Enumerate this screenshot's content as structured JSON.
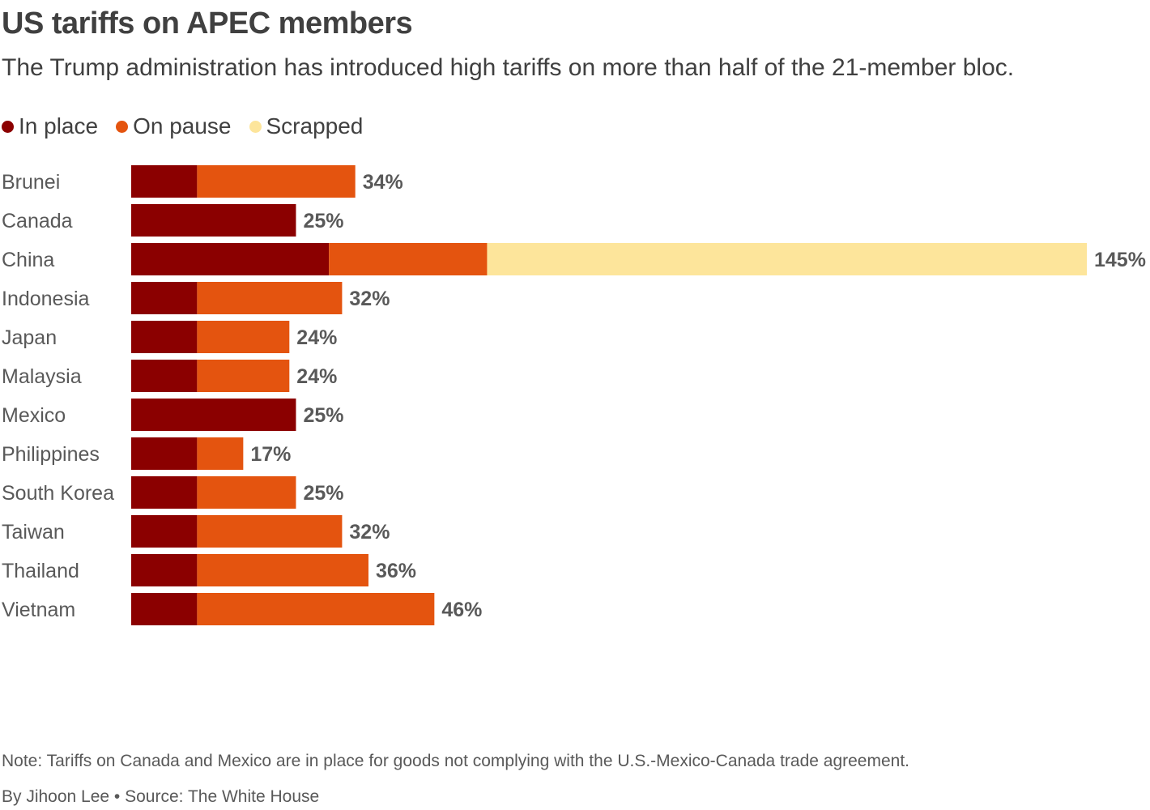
{
  "header": {
    "title": "US tariffs on APEC members",
    "subtitle": "The Trump administration has introduced high tariffs on more than half of the 21-member bloc."
  },
  "legend": [
    {
      "label": "In place",
      "color": "#8b0000"
    },
    {
      "label": "On pause",
      "color": "#e4540f"
    },
    {
      "label": "Scrapped",
      "color": "#fde59b"
    }
  ],
  "footer": {
    "note": "Note: Tariffs on Canada and Mexico are in place for goods not complying with the U.S.-Mexico-Canada trade agreement.",
    "byline": "By Jihoon Lee • Source: The White House"
  },
  "chart_data": {
    "type": "bar",
    "orientation": "horizontal",
    "stacked": true,
    "categories": [
      "Brunei",
      "Canada",
      "China",
      "Indonesia",
      "Japan",
      "Malaysia",
      "Mexico",
      "Philippines",
      "South Korea",
      "Taiwan",
      "Thailand",
      "Vietnam"
    ],
    "series": [
      {
        "name": "In place",
        "color": "#8b0000",
        "values": [
          10,
          25,
          30,
          10,
          10,
          10,
          25,
          10,
          10,
          10,
          10,
          10
        ]
      },
      {
        "name": "On pause",
        "color": "#e4540f",
        "values": [
          24,
          0,
          24,
          22,
          14,
          14,
          0,
          7,
          15,
          22,
          26,
          36
        ]
      },
      {
        "name": "Scrapped",
        "color": "#fde59b",
        "values": [
          0,
          0,
          91,
          0,
          0,
          0,
          0,
          0,
          0,
          0,
          0,
          0
        ]
      }
    ],
    "totals": [
      "34%",
      "25%",
      "145%",
      "32%",
      "24%",
      "24%",
      "25%",
      "17%",
      "25%",
      "32%",
      "36%",
      "46%"
    ],
    "xlim": [
      0,
      145
    ],
    "axes_shown": false,
    "grid": false,
    "legend_position": "top-left"
  }
}
